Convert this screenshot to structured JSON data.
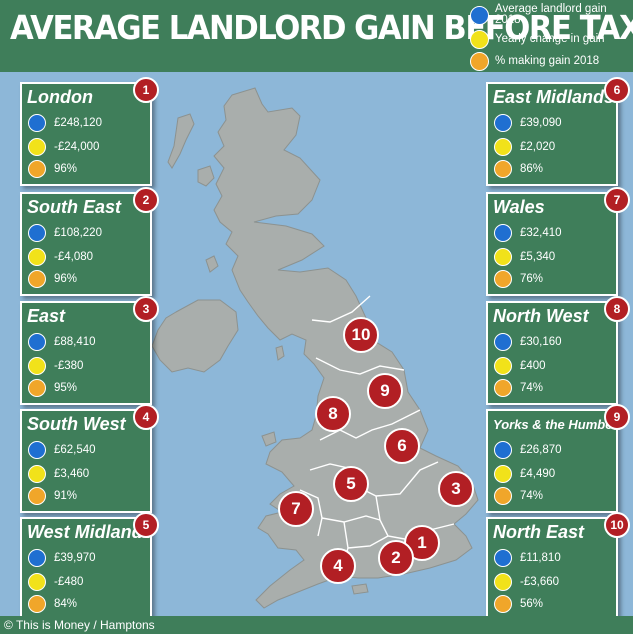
{
  "title": "AVERAGE LANDLORD GAIN BEFORE TAX",
  "legend": [
    {
      "label": "Average landlord gain 2018",
      "color": "#1f6fd1"
    },
    {
      "label": "Yearly change in gain",
      "color": "#f1e21a"
    },
    {
      "label": "% making gain 2018",
      "color": "#f0a62a"
    }
  ],
  "regions": [
    {
      "num": "1",
      "name": "London",
      "gain": "£248,120",
      "change": "-£24,000",
      "pct": "96%"
    },
    {
      "num": "2",
      "name": "South East",
      "gain": "£108,220",
      "change": "-£4,080",
      "pct": "96%"
    },
    {
      "num": "3",
      "name": "East",
      "gain": "£88,410",
      "change": "-£380",
      "pct": "95%"
    },
    {
      "num": "4",
      "name": "South West",
      "gain": "£62,540",
      "change": "£3,460",
      "pct": "91%"
    },
    {
      "num": "5",
      "name": "West Midlands",
      "gain": "£39,970",
      "change": "-£480",
      "pct": "84%"
    },
    {
      "num": "6",
      "name": "East Midlands",
      "gain": "£39,090",
      "change": "£2,020",
      "pct": "86%"
    },
    {
      "num": "7",
      "name": "Wales",
      "gain": "£32,410",
      "change": "£5,340",
      "pct": "76%"
    },
    {
      "num": "8",
      "name": "North West",
      "gain": "£30,160",
      "change": "£400",
      "pct": "74%"
    },
    {
      "num": "9",
      "name": "Yorks & the Humber",
      "gain": "£26,870",
      "change": "£4,490",
      "pct": "74%"
    },
    {
      "num": "10",
      "name": "North East",
      "gain": "£11,810",
      "change": "-£3,660",
      "pct": "56%"
    }
  ],
  "footer": "© This is Money / Hamptons",
  "colors": {
    "panel": "#3f7e5a",
    "sea": "#8db7d8",
    "land": "#a9aeac",
    "marker": "#b21f24"
  }
}
